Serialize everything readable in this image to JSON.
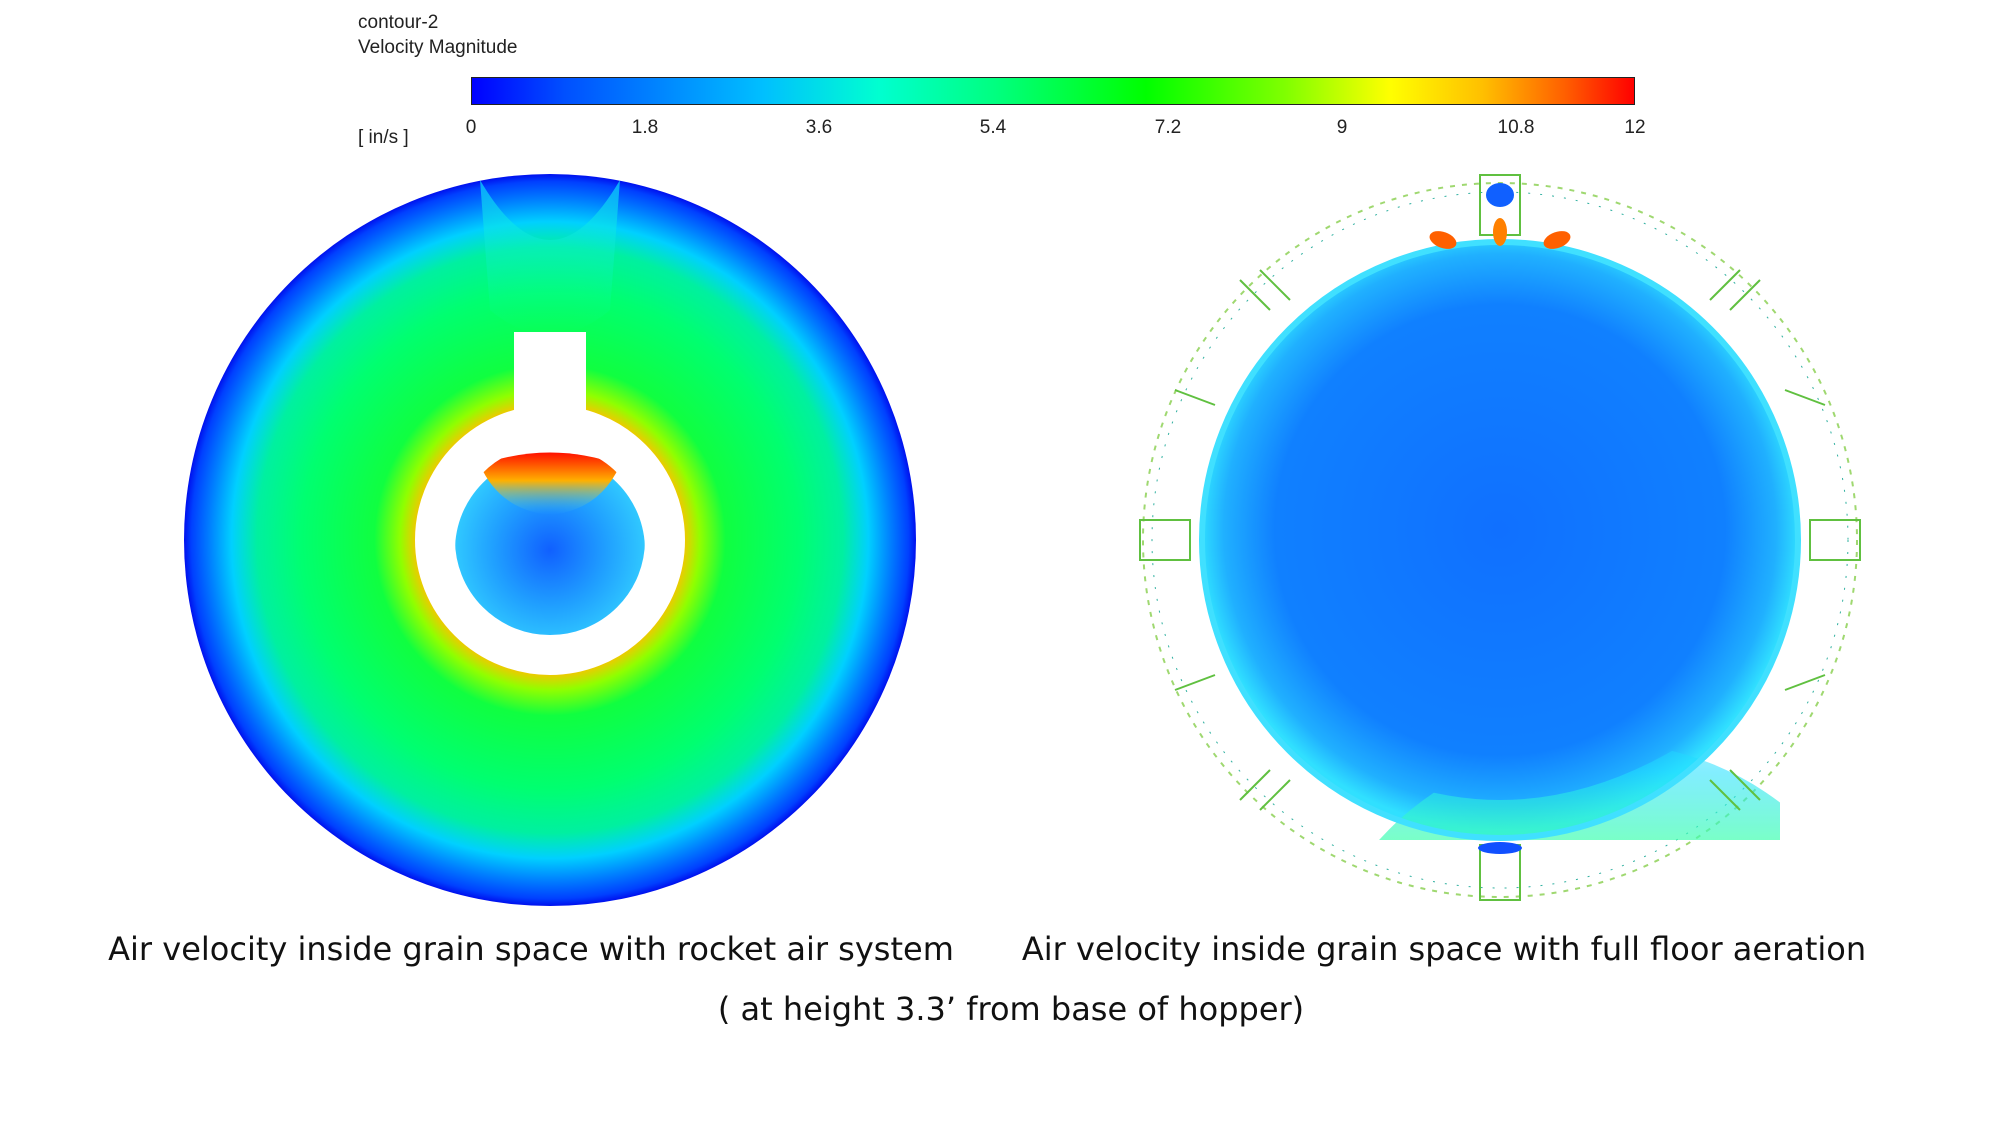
{
  "legend": {
    "contour_name": "contour-2",
    "quantity": "Velocity Magnitude",
    "units": "[ in/s ]",
    "ticks": [
      "0",
      "1.8",
      "3.6",
      "5.4",
      "7.2",
      "9",
      "10.8",
      "12"
    ],
    "range": [
      0,
      12
    ],
    "colormap": [
      "#0000ff",
      "#00bfff",
      "#00ff80",
      "#00ff00",
      "#ffff00",
      "#ff6000",
      "#ff0000"
    ]
  },
  "panels": {
    "left_caption": "Air velocity inside grain space with rocket air system",
    "right_caption": "Air velocity inside grain space with full floor aeration",
    "sub_caption": "( at height 3.3’ from base of hopper)"
  }
}
